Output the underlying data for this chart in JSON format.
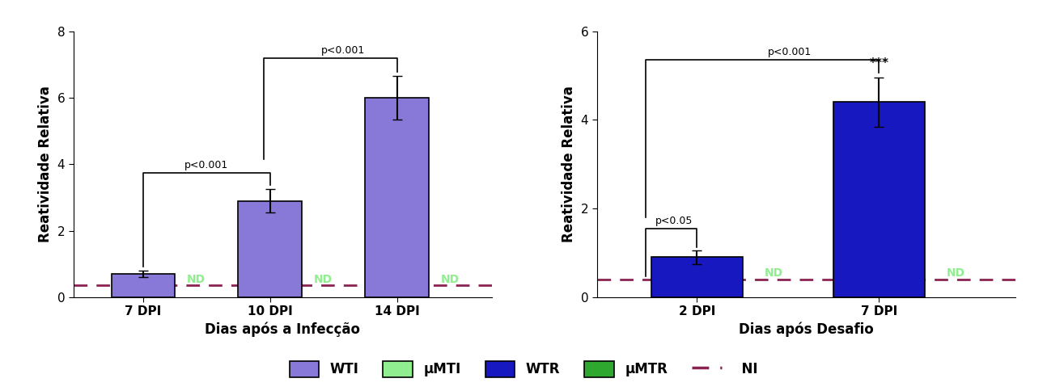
{
  "panel_A": {
    "categories": [
      "7 DPI",
      "10 DPI",
      "14 DPI"
    ],
    "wti_values": [
      0.7,
      2.9,
      6.0
    ],
    "wti_errors": [
      0.1,
      0.35,
      0.65
    ],
    "nd_label": "ND",
    "dashed_line_y": 0.35,
    "ylim": [
      0,
      8
    ],
    "yticks": [
      0,
      2,
      4,
      6,
      8
    ],
    "xlabel": "Dias após a Infecção",
    "ylabel": "Reatividade Relativa",
    "bar_positions": [
      1,
      2,
      3
    ],
    "bar_width": 0.5,
    "xlim": [
      0.45,
      3.75
    ]
  },
  "panel_B": {
    "categories": [
      "2 DPI",
      "7 DPI"
    ],
    "wtr_values": [
      0.9,
      4.4
    ],
    "wtr_errors": [
      0.15,
      0.55
    ],
    "nd_label": "ND",
    "dashed_line_y": 0.4,
    "ylim": [
      0,
      6
    ],
    "yticks": [
      0,
      2,
      4,
      6
    ],
    "xlabel": "Dias após Desafio",
    "ylabel": "Reatividade Relativa",
    "bar_positions": [
      1,
      2
    ],
    "bar_width": 0.5,
    "xlim": [
      0.45,
      2.75
    ]
  },
  "colors": {
    "WTI": "#8878d8",
    "muMTI": "#90ee90",
    "WTR": "#1818c0",
    "muMTR": "#2ea82e",
    "NI_line": "#8b2252",
    "nd_text": "#90ee90",
    "bar_edge": "#000000"
  },
  "legend": {
    "entries": [
      "WTI",
      "μMTI",
      "WTR",
      "μMTR"
    ],
    "colors": [
      "#8878d8",
      "#90ee90",
      "#1818c0",
      "#2ea82e"
    ],
    "ni_label": "NI",
    "ni_color": "#8b2252"
  }
}
